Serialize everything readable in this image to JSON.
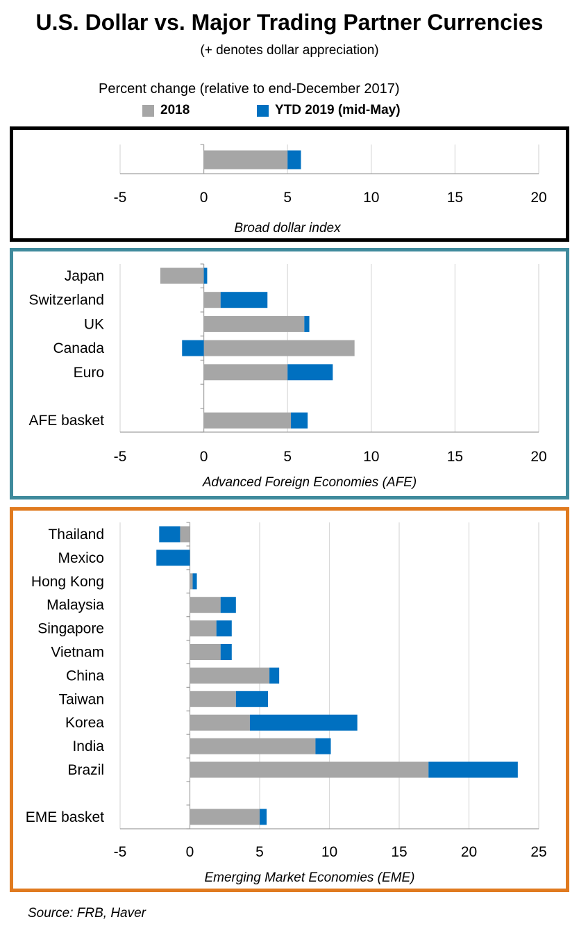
{
  "title": "U.S. Dollar vs. Major Trading Partner Currencies",
  "subtitle": "(+ denotes  dollar appreciation)",
  "percent_label": "Percent change (relative to end-December 2017)",
  "legend": [
    {
      "name": "2018",
      "color": "#a6a6a6"
    },
    {
      "name": "YTD 2019 (mid-May)",
      "color": "#0070c0"
    }
  ],
  "source": "Source: FRB, Haver",
  "colors": {
    "series_2018": "#a6a6a6",
    "series_2019": "#0070c0",
    "grid": "#d9d9d9",
    "axis": "#a0a0a0"
  },
  "chart_data": [
    {
      "id": "broad",
      "type": "bar",
      "orientation": "horizontal",
      "stacked": true,
      "title": "Broad dollar index",
      "categories": [
        ""
      ],
      "series": [
        {
          "name": "2018",
          "values": [
            5.0
          ]
        },
        {
          "name": "YTD 2019 (mid-May)",
          "values": [
            0.8
          ]
        }
      ],
      "xlim": [
        -5,
        20
      ],
      "xticks": [
        -5,
        0,
        5,
        10,
        15,
        20
      ]
    },
    {
      "id": "afe",
      "type": "bar",
      "orientation": "horizontal",
      "stacked": true,
      "title": "Advanced Foreign Economies (AFE)",
      "categories": [
        "Japan",
        "Switzerland",
        "UK",
        "Canada",
        "Euro",
        "",
        "AFE basket"
      ],
      "series": [
        {
          "name": "2018",
          "values": [
            -2.6,
            1.0,
            6.0,
            9.0,
            5.0,
            null,
            5.2
          ]
        },
        {
          "name": "YTD 2019 (mid-May)",
          "values": [
            0.2,
            2.8,
            0.3,
            -1.3,
            2.7,
            null,
            1.0
          ]
        }
      ],
      "xlim": [
        -5,
        20
      ],
      "xticks": [
        -5,
        0,
        5,
        10,
        15,
        20
      ]
    },
    {
      "id": "eme",
      "type": "bar",
      "orientation": "horizontal",
      "stacked": true,
      "title": "Emerging Market Economies (EME)",
      "categories": [
        "Thailand",
        "Mexico",
        "Hong Kong",
        "Malaysia",
        "Singapore",
        "Vietnam",
        "China",
        "Taiwan",
        "Korea",
        "India",
        "Brazil",
        "",
        "EME basket"
      ],
      "series": [
        {
          "name": "2018",
          "values": [
            -0.7,
            0.0,
            0.2,
            2.2,
            1.9,
            2.2,
            5.7,
            3.3,
            4.3,
            9.0,
            17.1,
            null,
            5.0
          ]
        },
        {
          "name": "YTD 2019 (mid-May)",
          "values": [
            -1.5,
            -2.4,
            0.3,
            1.1,
            1.1,
            0.8,
            0.7,
            2.3,
            7.7,
            1.1,
            6.4,
            null,
            0.5
          ]
        }
      ],
      "xlim": [
        -5,
        25
      ],
      "xticks": [
        -5,
        0,
        5,
        10,
        15,
        20,
        25
      ]
    }
  ]
}
